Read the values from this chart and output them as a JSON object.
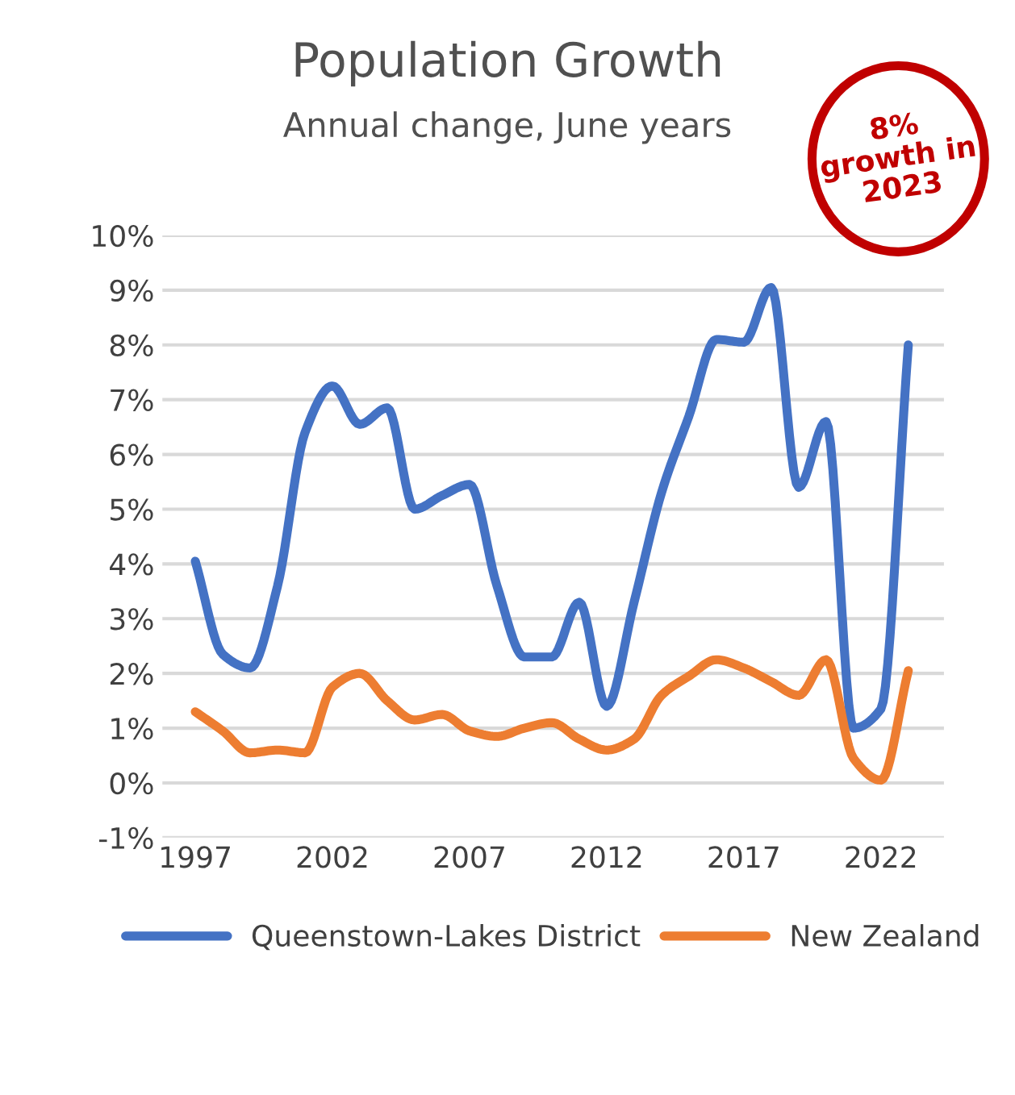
{
  "chart_data": {
    "type": "line",
    "title": "Population Growth",
    "subtitle": "Annual change, June years",
    "x": [
      1997,
      1998,
      1999,
      2000,
      2001,
      2002,
      2003,
      2004,
      2005,
      2006,
      2007,
      2008,
      2009,
      2010,
      2011,
      2012,
      2013,
      2014,
      2015,
      2016,
      2017,
      2018,
      2019,
      2020,
      2021,
      2022,
      2023
    ],
    "series": [
      {
        "name": "Queenstown-Lakes District",
        "color": "#4472c4",
        "values": [
          4.05,
          2.35,
          2.1,
          3.6,
          6.4,
          7.25,
          6.55,
          6.85,
          5.0,
          5.25,
          5.45,
          3.6,
          2.3,
          2.3,
          3.3,
          1.4,
          3.3,
          5.3,
          6.7,
          8.1,
          8.05,
          9.05,
          5.4,
          6.6,
          1.0,
          1.35,
          8.0
        ]
      },
      {
        "name": "New Zealand",
        "color": "#ed7d31",
        "values": [
          1.3,
          0.95,
          0.55,
          0.6,
          0.55,
          1.75,
          2.0,
          1.5,
          1.15,
          1.25,
          0.95,
          0.85,
          1.0,
          1.1,
          0.8,
          0.6,
          0.8,
          1.6,
          1.95,
          2.25,
          2.1,
          1.85,
          1.6,
          2.25,
          0.45,
          0.05,
          2.05
        ]
      }
    ],
    "xlim": [
      1995.8,
      2024.3
    ],
    "xticks": [
      1997,
      2002,
      2007,
      2012,
      2017,
      2022
    ],
    "ylim": [
      -1,
      10
    ],
    "yticks": [
      {
        "value": -1,
        "label": "-1%"
      },
      {
        "value": 0,
        "label": "0%"
      },
      {
        "value": 1,
        "label": "1%"
      },
      {
        "value": 2,
        "label": "2%"
      },
      {
        "value": 3,
        "label": "3%"
      },
      {
        "value": 4,
        "label": "4%"
      },
      {
        "value": 5,
        "label": "5%"
      },
      {
        "value": 6,
        "label": "6%"
      },
      {
        "value": 7,
        "label": "7%"
      },
      {
        "value": 8,
        "label": "8%"
      },
      {
        "value": 9,
        "label": "9%"
      },
      {
        "value": 10,
        "label": "10%"
      }
    ],
    "grid": "y",
    "legend": "bottom",
    "marker": "none",
    "line_style": "solid",
    "annotations": [
      "8%\ngrowth in\n2023"
    ]
  }
}
